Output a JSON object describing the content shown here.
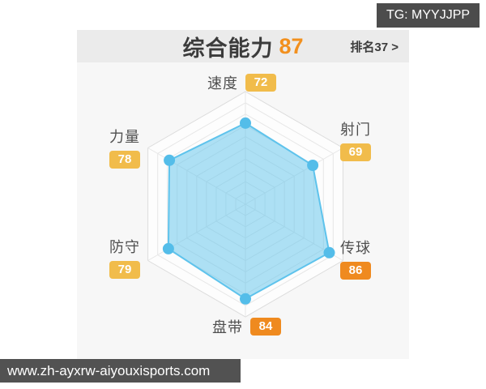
{
  "header": {
    "title": "综合能力",
    "score": "87",
    "rank": "排名37 >"
  },
  "colors": {
    "accent_orange": "#f2901e",
    "title_dark": "#3b3b3b",
    "badge_low": "#f1bc4b",
    "badge_high": "#ef8a1f",
    "header_bg": "#ebebeb",
    "panel_bg": "#f7f7f7",
    "watermark_bg": "#4c4c4c"
  },
  "axes": [
    {
      "label": "速度",
      "value": "72",
      "badge_color": "#f1bc4b"
    },
    {
      "label": "射门",
      "value": "69",
      "badge_color": "#f1bc4b"
    },
    {
      "label": "传球",
      "value": "86",
      "badge_color": "#ef8a1f"
    },
    {
      "label": "盘带",
      "value": "84",
      "badge_color": "#ef8a1f"
    },
    {
      "label": "防守",
      "value": "79",
      "badge_color": "#f1bc4b"
    },
    {
      "label": "力量",
      "value": "78",
      "badge_color": "#f1bc4b"
    }
  ],
  "chart_data": {
    "type": "radar",
    "title": "综合能力 87",
    "categories": [
      "速度",
      "射门",
      "传球",
      "盘带",
      "防守",
      "力量"
    ],
    "values": [
      72,
      69,
      86,
      84,
      79,
      78
    ],
    "max": 100,
    "rings": [
      1,
      0.9,
      0.8,
      0.7,
      0.6,
      0.5,
      0.4,
      0.3,
      0.2,
      0.1
    ],
    "legend": [],
    "grid_on": true,
    "colors": {
      "fill": "#5ec3ec",
      "fill_opacity": "0.5",
      "stroke": "#5ec3ec",
      "dot": "#54bde9",
      "grid": "#e7e7e7",
      "grid_outer": "#dcdcdc",
      "plot_bg": "#fdfdfd"
    }
  },
  "watermarks": {
    "top_right": "TG: MYYJJPP",
    "bottom_left": "www.zh-ayxrw-aiyouxisports.com"
  }
}
